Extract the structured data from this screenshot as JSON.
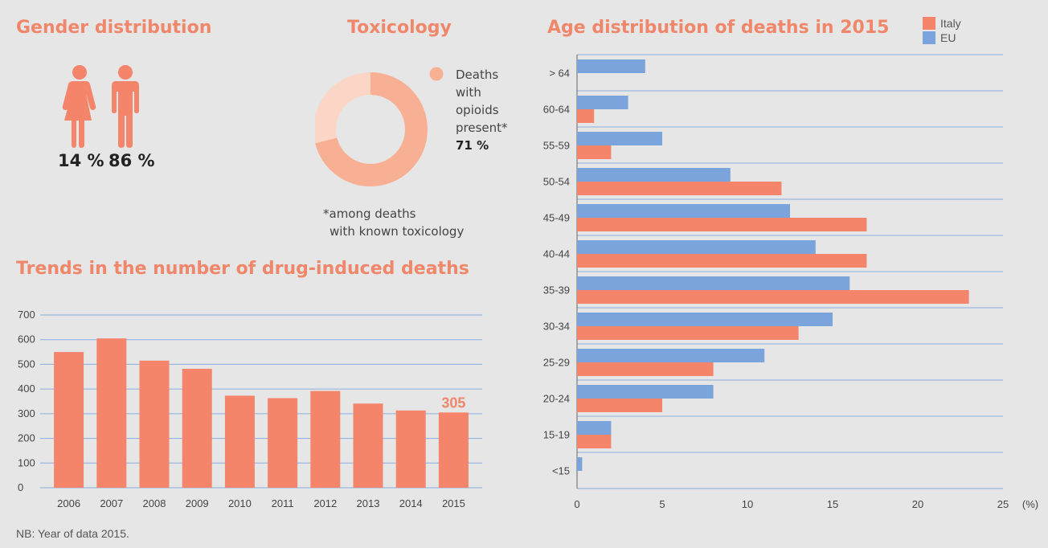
{
  "colors": {
    "italy": "#f4846a",
    "eu": "#7ba3dc",
    "accent": "#f0866a",
    "donut_main": "#f7b093",
    "donut_rest": "#fbd6c6",
    "grid": "#8aaee0"
  },
  "gender": {
    "title": "Gender distribution",
    "female_pct": "14 %",
    "male_pct": "86 %"
  },
  "toxicology": {
    "title": "Toxicology",
    "legend_lines": [
      "Deaths",
      "with",
      "opioids",
      "present*"
    ],
    "value_label": "71 %",
    "value": 71,
    "footnote_lines": [
      "*among deaths",
      "with known toxicology"
    ]
  },
  "trends": {
    "title": "Trends in the number of drug-induced deaths",
    "highlight_label": "305"
  },
  "age": {
    "title": "Age distribution of deaths in 2015",
    "unit_label": "(%)"
  },
  "note": "NB: Year of data 2015.",
  "chart_data": [
    {
      "type": "bar",
      "title": "Trends in the number of drug-induced deaths",
      "categories": [
        "2006",
        "2007",
        "2008",
        "2009",
        "2010",
        "2011",
        "2012",
        "2013",
        "2014",
        "2015"
      ],
      "values": [
        550,
        605,
        515,
        482,
        373,
        363,
        392,
        341,
        313,
        305
      ],
      "ylim": [
        0,
        700
      ],
      "yticks": [
        0,
        100,
        200,
        300,
        400,
        500,
        600,
        700
      ],
      "grid": true
    },
    {
      "type": "bar",
      "orientation": "horizontal",
      "title": "Age distribution of deaths in 2015",
      "categories": [
        "> 64",
        "60-64",
        "55-59",
        "50-54",
        "45-49",
        "40-44",
        "35-39",
        "30-34",
        "25-29",
        "20-24",
        "15-19",
        "<15"
      ],
      "series": [
        {
          "name": "EU",
          "values": [
            4,
            3,
            5,
            9,
            12.5,
            14,
            16,
            15,
            11,
            8,
            2,
            0.3
          ]
        },
        {
          "name": "Italy",
          "values": [
            0,
            1,
            2,
            12,
            17,
            17,
            23,
            13,
            8,
            5,
            2,
            0
          ]
        }
      ],
      "xlim": [
        0,
        25
      ],
      "xticks": [
        0,
        5,
        10,
        15,
        20,
        25
      ],
      "legend": "top-right",
      "grid": true
    }
  ]
}
